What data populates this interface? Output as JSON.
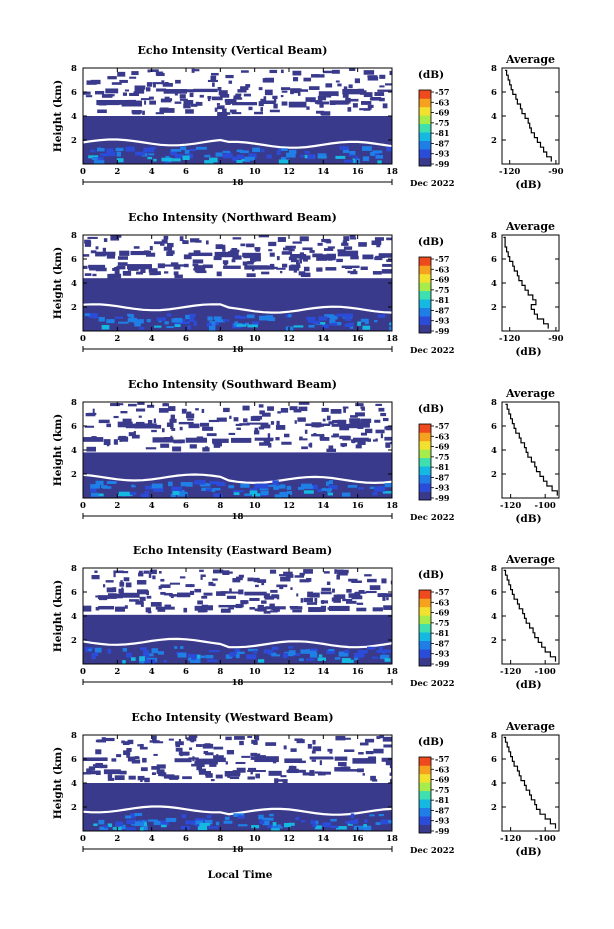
{
  "figure": {
    "bottom_xlabel": "Local Time",
    "colorbar_unit": "(dB)",
    "colorbar_levels": [
      "-57",
      "-63",
      "-69",
      "-75",
      "-81",
      "-87",
      "-93",
      "-99"
    ],
    "colorscale": [
      "#3a3a8c",
      "#2a4cd8",
      "#1f7fe6",
      "#15b8e0",
      "#3fe0b0",
      "#a6ec4a",
      "#f2e12e",
      "#f7a21f",
      "#ef4a1e"
    ]
  },
  "chart_data": [
    {
      "type": "heatmap",
      "title": "Echo Intensity (Vertical Beam)",
      "ylabel": "Height (km)",
      "ylim": [
        0,
        8
      ],
      "yticks": [
        "2",
        "4",
        "6",
        "8"
      ],
      "xlim": [
        0,
        18
      ],
      "xticks": [
        "0",
        "2",
        "4",
        "6",
        "8",
        "10",
        "12",
        "14",
        "16",
        "18"
      ],
      "date_day": "18",
      "date_label": "Dec 2022",
      "colorbar": {
        "unit": "(dB)",
        "levels": [
          "-57",
          "-63",
          "-69",
          "-75",
          "-81",
          "-87",
          "-93",
          "-99"
        ]
      },
      "layers_km": [
        [
          0.0,
          4.0
        ],
        [
          5.0,
          5.4
        ],
        [
          6.0,
          6.3
        ]
      ],
      "average": {
        "title": "Average",
        "xlabel": "(dB)",
        "xticks": [
          "-120",
          "-90"
        ],
        "xlim": [
          -125,
          -88
        ],
        "yticks": [
          "2",
          "4",
          "6",
          "8"
        ],
        "height": [
          0.2,
          0.6,
          1.0,
          1.4,
          1.8,
          2.2,
          2.6,
          3.0,
          3.4,
          3.8,
          4.2,
          4.6,
          5.0,
          5.4,
          5.8,
          6.2,
          6.6,
          7.0,
          7.4,
          7.8
        ],
        "db": [
          -93,
          -96,
          -98,
          -100,
          -102,
          -104,
          -106,
          -107,
          -108,
          -110,
          -112,
          -113,
          -115,
          -116,
          -118,
          -119,
          -120,
          -121,
          -122,
          -123
        ]
      }
    },
    {
      "type": "heatmap",
      "title": "Echo Intensity (Northward Beam)",
      "ylabel": "Height (km)",
      "ylim": [
        0,
        8
      ],
      "yticks": [
        "2",
        "4",
        "6",
        "8"
      ],
      "xlim": [
        0,
        18
      ],
      "xticks": [
        "0",
        "2",
        "4",
        "6",
        "8",
        "10",
        "12",
        "14",
        "16",
        "18"
      ],
      "date_day": "18",
      "date_label": "Dec 2022",
      "colorbar": {
        "unit": "(dB)",
        "levels": [
          "-57",
          "-63",
          "-69",
          "-75",
          "-81",
          "-87",
          "-93",
          "-99"
        ]
      },
      "layers_km": [
        [
          0.0,
          4.4
        ],
        [
          5.2,
          5.6
        ],
        [
          6.4,
          6.7
        ]
      ],
      "average": {
        "title": "Average",
        "xlabel": "(dB)",
        "xticks": [
          "-120",
          "-90"
        ],
        "xlim": [
          -125,
          -88
        ],
        "yticks": [
          "2",
          "4",
          "6",
          "8"
        ],
        "height": [
          0.2,
          0.6,
          1.0,
          1.4,
          1.8,
          2.2,
          2.6,
          3.0,
          3.4,
          3.8,
          4.2,
          4.6,
          5.0,
          5.4,
          5.8,
          6.2,
          6.6,
          7.0,
          7.4,
          7.8
        ],
        "db": [
          -95,
          -98,
          -102,
          -104,
          -106,
          -103,
          -105,
          -108,
          -110,
          -112,
          -114,
          -115,
          -117,
          -118,
          -120,
          -121,
          -122,
          -123,
          -123,
          -124
        ]
      }
    },
    {
      "type": "heatmap",
      "title": "Echo Intensity (Southward Beam)",
      "ylabel": "Height (km)",
      "ylim": [
        0,
        8
      ],
      "yticks": [
        "2",
        "4",
        "6",
        "8"
      ],
      "xlim": [
        0,
        18
      ],
      "xticks": [
        "0",
        "2",
        "4",
        "6",
        "8",
        "10",
        "12",
        "14",
        "16",
        "18"
      ],
      "date_day": "18",
      "date_label": "Dec 2022",
      "colorbar": {
        "unit": "(dB)",
        "levels": [
          "-57",
          "-63",
          "-69",
          "-75",
          "-81",
          "-87",
          "-93",
          "-99"
        ]
      },
      "layers_km": [
        [
          0.0,
          3.8
        ],
        [
          4.8,
          5.2
        ],
        [
          6.2,
          6.5
        ]
      ],
      "average": {
        "title": "Average",
        "xlabel": "(dB)",
        "xticks": [
          "-120",
          "-100"
        ],
        "xlim": [
          -125,
          -92
        ],
        "yticks": [
          "2",
          "4",
          "6",
          "8"
        ],
        "height": [
          0.2,
          0.6,
          1.0,
          1.4,
          1.8,
          2.2,
          2.6,
          3.0,
          3.4,
          3.8,
          4.2,
          4.6,
          5.0,
          5.4,
          5.8,
          6.2,
          6.6,
          7.0,
          7.4,
          7.8
        ],
        "db": [
          -93,
          -96,
          -99,
          -101,
          -103,
          -105,
          -106,
          -108,
          -110,
          -111,
          -112,
          -114,
          -115,
          -117,
          -118,
          -119,
          -120,
          -121,
          -122,
          -123
        ]
      }
    },
    {
      "type": "heatmap",
      "title": "Echo Intensity (Eastward Beam)",
      "ylabel": "Height (km)",
      "ylim": [
        0,
        8
      ],
      "yticks": [
        "2",
        "4",
        "6",
        "8"
      ],
      "xlim": [
        0,
        18
      ],
      "xticks": [
        "0",
        "2",
        "4",
        "6",
        "8",
        "10",
        "12",
        "14",
        "16",
        "18"
      ],
      "date_day": "18",
      "date_label": "Dec 2022",
      "colorbar": {
        "unit": "(dB)",
        "levels": [
          "-57",
          "-63",
          "-69",
          "-75",
          "-81",
          "-87",
          "-93",
          "-99"
        ]
      },
      "layers_km": [
        [
          0.0,
          4.1
        ],
        [
          4.7,
          5.0
        ],
        [
          5.9,
          6.2
        ]
      ],
      "average": {
        "title": "Average",
        "xlabel": "(dB)",
        "xticks": [
          "-120",
          "-100"
        ],
        "xlim": [
          -125,
          -92
        ],
        "yticks": [
          "2",
          "4",
          "6",
          "8"
        ],
        "height": [
          0.2,
          0.6,
          1.0,
          1.4,
          1.8,
          2.2,
          2.6,
          3.0,
          3.4,
          3.8,
          4.2,
          4.6,
          5.0,
          5.4,
          5.8,
          6.2,
          6.6,
          7.0,
          7.4,
          7.8
        ],
        "db": [
          -94,
          -97,
          -100,
          -102,
          -104,
          -106,
          -107,
          -109,
          -111,
          -112,
          -113,
          -115,
          -116,
          -118,
          -119,
          -120,
          -121,
          -122,
          -123,
          -124
        ]
      }
    },
    {
      "type": "heatmap",
      "title": "Echo Intensity (Westward Beam)",
      "ylabel": "Height (km)",
      "ylim": [
        0,
        8
      ],
      "yticks": [
        "2",
        "4",
        "6",
        "8"
      ],
      "xlim": [
        0,
        18
      ],
      "xticks": [
        "0",
        "2",
        "4",
        "6",
        "8",
        "10",
        "12",
        "14",
        "16",
        "18"
      ],
      "date_day": "18",
      "date_label": "Dec 2022",
      "colorbar": {
        "unit": "(dB)",
        "levels": [
          "-57",
          "-63",
          "-69",
          "-75",
          "-81",
          "-87",
          "-93",
          "-99"
        ]
      },
      "layers_km": [
        [
          0.0,
          4.0
        ],
        [
          4.8,
          5.2
        ],
        [
          6.0,
          6.3
        ]
      ],
      "average": {
        "title": "Average",
        "xlabel": "(dB)",
        "xticks": [
          "-120",
          "-100"
        ],
        "xlim": [
          -125,
          -92
        ],
        "yticks": [
          "2",
          "4",
          "6",
          "8"
        ],
        "height": [
          0.2,
          0.6,
          1.0,
          1.4,
          1.8,
          2.2,
          2.6,
          3.0,
          3.4,
          3.8,
          4.2,
          4.6,
          5.0,
          5.4,
          5.8,
          6.2,
          6.6,
          7.0,
          7.4,
          7.8
        ],
        "db": [
          -94,
          -97,
          -100,
          -103,
          -105,
          -106,
          -108,
          -109,
          -111,
          -112,
          -114,
          -115,
          -116,
          -118,
          -119,
          -120,
          -121,
          -122,
          -123,
          -124
        ]
      }
    }
  ]
}
